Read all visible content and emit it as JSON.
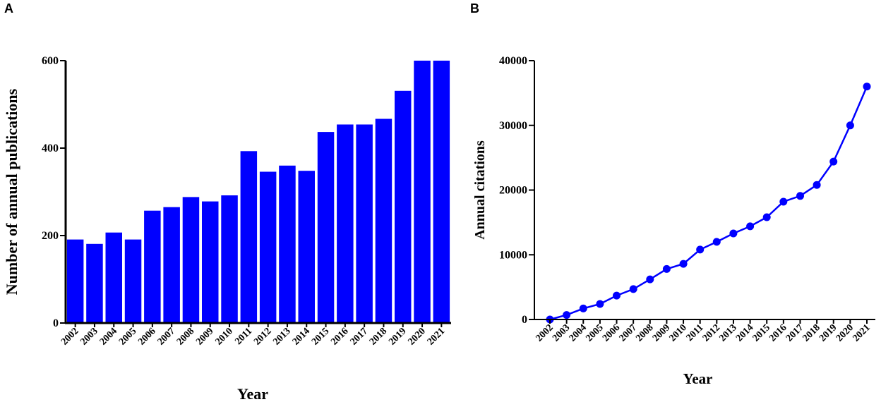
{
  "panels": {
    "a": "A",
    "b": "B"
  },
  "chart_data": [
    {
      "type": "bar",
      "title": "",
      "xlabel": "Year",
      "ylabel": "Number  of annual publications",
      "ylim": [
        0,
        600
      ],
      "yticks": [
        0,
        200,
        400,
        600
      ],
      "categories": [
        "2002",
        "2003",
        "2004",
        "2005",
        "2006",
        "2007",
        "2008",
        "2009",
        "2010",
        "2011",
        "2012",
        "2013",
        "2014",
        "2015",
        "2016",
        "2017",
        "2018",
        "2019",
        "2020",
        "2021"
      ],
      "values": [
        191,
        181,
        207,
        191,
        257,
        265,
        288,
        278,
        292,
        393,
        346,
        360,
        348,
        437,
        454,
        454,
        467,
        531,
        600,
        600
      ],
      "color": "#0000ff"
    },
    {
      "type": "line",
      "title": "",
      "xlabel": "Year",
      "ylabel": "Annual citations",
      "ylim": [
        0,
        40000
      ],
      "yticks": [
        0,
        10000,
        20000,
        30000,
        40000
      ],
      "categories": [
        "2002",
        "2003",
        "2004",
        "2005",
        "2006",
        "2007",
        "2008",
        "2009",
        "2010",
        "2011",
        "2012",
        "2013",
        "2014",
        "2015",
        "2016",
        "2017",
        "2018",
        "2019",
        "2020",
        "2021"
      ],
      "values": [
        0,
        700,
        1700,
        2400,
        3700,
        4700,
        6200,
        7800,
        8600,
        10800,
        12000,
        13300,
        14400,
        15800,
        18200,
        19100,
        20800,
        24400,
        30000,
        36000
      ],
      "color": "#0000ff"
    }
  ]
}
